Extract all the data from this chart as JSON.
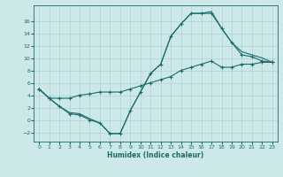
{
  "xlabel": "Humidex (Indice chaleur)",
  "background_color": "#cce8e8",
  "line_color": "#1a6b6b",
  "xlim": [
    -0.5,
    23.5
  ],
  "ylim": [
    -3.5,
    18.5
  ],
  "yticks": [
    -2,
    0,
    2,
    4,
    6,
    8,
    10,
    12,
    14,
    16
  ],
  "xticks": [
    0,
    1,
    2,
    3,
    4,
    5,
    6,
    7,
    8,
    9,
    10,
    11,
    12,
    13,
    14,
    15,
    16,
    17,
    18,
    19,
    20,
    21,
    22,
    23
  ],
  "line1_x": [
    0,
    1,
    2,
    3,
    4,
    5,
    6,
    7,
    8,
    9,
    10,
    11,
    12,
    13,
    14,
    15,
    16,
    17,
    18,
    19,
    20,
    21,
    22,
    23
  ],
  "line1_y": [
    5.0,
    3.5,
    2.2,
    1.0,
    0.8,
    0.0,
    -0.5,
    -2.2,
    -2.2,
    1.5,
    4.5,
    7.5,
    9.0,
    13.5,
    15.5,
    17.2,
    17.2,
    17.2,
    14.8,
    12.5,
    10.5,
    10.2,
    9.5,
    9.3
  ],
  "line2_x": [
    0,
    1,
    2,
    3,
    4,
    5,
    6,
    7,
    8,
    9,
    10,
    11,
    12,
    13,
    14,
    15,
    16,
    17,
    18,
    19,
    20,
    21,
    22,
    23
  ],
  "line2_y": [
    5.0,
    3.5,
    3.5,
    3.5,
    4.0,
    4.2,
    4.5,
    4.5,
    4.5,
    5.0,
    5.5,
    6.0,
    6.5,
    7.0,
    8.0,
    8.5,
    9.0,
    9.5,
    8.5,
    8.5,
    9.0,
    9.0,
    9.3,
    9.3
  ],
  "line3_x": [
    0,
    1,
    2,
    3,
    4,
    5,
    6,
    7,
    8,
    9,
    10,
    11,
    12,
    13,
    14,
    15,
    16,
    17,
    18,
    19,
    20,
    21,
    22,
    23
  ],
  "line3_y": [
    5.0,
    3.5,
    2.2,
    1.2,
    1.0,
    0.2,
    -0.5,
    -2.2,
    -2.2,
    1.5,
    4.5,
    7.5,
    9.0,
    13.5,
    15.5,
    17.2,
    17.2,
    17.5,
    14.8,
    12.5,
    11.0,
    10.5,
    10.0,
    9.3
  ]
}
